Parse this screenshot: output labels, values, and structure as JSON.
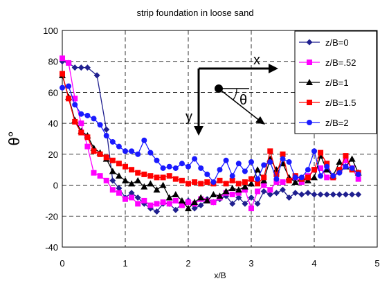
{
  "chart_data": {
    "type": "line",
    "title": "strip foundation in loose sand",
    "xlabel": "x/B",
    "ylabel": "θ°",
    "xlim": [
      0,
      5
    ],
    "ylim": [
      -40,
      100
    ],
    "xticks": [
      0,
      1,
      2,
      3,
      4,
      5
    ],
    "yticks": [
      -40,
      -20,
      0,
      20,
      40,
      60,
      80,
      100
    ],
    "grid": "dashed",
    "legend_placement": "top-right",
    "series": [
      {
        "name": "z/B=0",
        "color": "#1f1f8f",
        "marker": "diamond",
        "x": [
          0,
          0.1,
          0.2,
          0.3,
          0.4,
          0.55,
          0.7,
          0.8,
          0.9,
          1.0,
          1.1,
          1.2,
          1.3,
          1.4,
          1.5,
          1.6,
          1.7,
          1.8,
          1.9,
          2.0,
          2.1,
          2.2,
          2.3,
          2.4,
          2.5,
          2.6,
          2.7,
          2.8,
          2.9,
          3.0,
          3.1,
          3.2,
          3.3,
          3.4,
          3.5,
          3.6,
          3.7,
          3.8,
          3.9,
          4.0,
          4.1,
          4.2,
          4.3,
          4.4,
          4.5,
          4.6,
          4.7
        ],
        "y": [
          80,
          79,
          76,
          76,
          76,
          71,
          36,
          3,
          -2,
          -8,
          -5,
          -8,
          -12,
          -15,
          -17,
          -12,
          -12,
          -16,
          -12,
          -10,
          -15,
          -13,
          -9,
          -11,
          -9,
          -7,
          -12,
          -8,
          -12,
          -8,
          -12,
          -4,
          -6,
          -5,
          -3,
          -8,
          -5,
          -6,
          -5,
          -6,
          -6,
          -6,
          -6,
          -6,
          -6,
          -6,
          -6
        ]
      },
      {
        "name": "z/B=.52",
        "color": "#ff00ff",
        "marker": "square",
        "x": [
          0,
          0.1,
          0.2,
          0.3,
          0.4,
          0.5,
          0.6,
          0.7,
          0.8,
          0.9,
          1.0,
          1.1,
          1.2,
          1.3,
          1.4,
          1.5,
          1.6,
          1.7,
          1.8,
          1.9,
          2.0,
          2.1,
          2.2,
          2.3,
          2.4,
          2.5,
          2.6,
          2.7,
          2.8,
          2.9,
          3.0,
          3.1,
          3.2,
          3.3,
          3.4,
          3.5,
          3.6,
          3.7,
          3.8,
          3.9,
          4.0,
          4.1,
          4.2,
          4.3,
          4.4,
          4.5,
          4.6,
          4.7
        ],
        "y": [
          82,
          79,
          56,
          40,
          25,
          8,
          6,
          3,
          -3,
          -5,
          -9,
          -8,
          -12,
          -10,
          -13,
          -12,
          -11,
          -12,
          -10,
          -13,
          -11,
          -12,
          -9,
          -10,
          -11,
          -8,
          -5,
          -6,
          -5,
          -3,
          -15,
          -4,
          0,
          -3,
          2,
          2,
          3,
          5,
          2,
          6,
          10,
          11,
          5,
          5,
          10,
          16,
          11,
          4
        ]
      },
      {
        "name": "z/B=1",
        "color": "#000000",
        "marker": "triangle",
        "x": [
          0,
          0.1,
          0.2,
          0.3,
          0.4,
          0.5,
          0.6,
          0.7,
          0.8,
          0.9,
          1.0,
          1.1,
          1.2,
          1.3,
          1.4,
          1.5,
          1.6,
          1.7,
          1.8,
          1.9,
          2.0,
          2.1,
          2.2,
          2.3,
          2.4,
          2.5,
          2.6,
          2.7,
          2.8,
          2.9,
          3.0,
          3.1,
          3.2,
          3.3,
          3.4,
          3.5,
          3.6,
          3.7,
          3.8,
          3.9,
          4.0,
          4.1,
          4.2,
          4.3,
          4.4,
          4.5,
          4.6,
          4.7
        ],
        "y": [
          71,
          57,
          42,
          35,
          32,
          24,
          21,
          17,
          9,
          6,
          3,
          1,
          3,
          -1,
          1,
          -3,
          0,
          -8,
          -6,
          -10,
          -15,
          -11,
          -8,
          -10,
          -6,
          -7,
          -4,
          -2,
          -3,
          -1,
          1,
          10,
          3,
          17,
          10,
          14,
          5,
          2,
          4,
          3,
          5,
          19,
          10,
          6,
          15,
          12,
          17,
          8
        ]
      },
      {
        "name": "z/B=1.5",
        "color": "#ff0000",
        "marker": "square",
        "x": [
          0,
          0.1,
          0.2,
          0.3,
          0.4,
          0.5,
          0.6,
          0.7,
          0.8,
          0.9,
          1.0,
          1.1,
          1.2,
          1.3,
          1.4,
          1.5,
          1.6,
          1.7,
          1.8,
          1.9,
          2.0,
          2.1,
          2.2,
          2.3,
          2.4,
          2.5,
          2.6,
          2.7,
          2.8,
          2.9,
          3.0,
          3.1,
          3.2,
          3.3,
          3.4,
          3.5,
          3.6,
          3.7,
          3.8,
          3.9,
          4.0,
          4.1,
          4.2,
          4.3,
          4.4,
          4.5,
          4.6,
          4.7
        ],
        "y": [
          72,
          56,
          41,
          34,
          31,
          22,
          20,
          18,
          16,
          14,
          12,
          10,
          8,
          7,
          6,
          5,
          5,
          6,
          4,
          3,
          1,
          2,
          1,
          2,
          1,
          3,
          1,
          3,
          1,
          2,
          4,
          1,
          5,
          22,
          7,
          20,
          3,
          6,
          4,
          5,
          10,
          21,
          14,
          5,
          10,
          19,
          10,
          8
        ]
      },
      {
        "name": "z/B=2",
        "color": "#1a1aff",
        "marker": "circle",
        "x": [
          0,
          0.1,
          0.2,
          0.3,
          0.4,
          0.5,
          0.6,
          0.7,
          0.8,
          0.9,
          1.0,
          1.1,
          1.2,
          1.3,
          1.4,
          1.5,
          1.6,
          1.7,
          1.8,
          1.9,
          2.0,
          2.1,
          2.2,
          2.3,
          2.4,
          2.5,
          2.6,
          2.7,
          2.8,
          2.9,
          3.0,
          3.1,
          3.2,
          3.3,
          3.4,
          3.5,
          3.6,
          3.7,
          3.8,
          3.9,
          4.0,
          4.1,
          4.2,
          4.3,
          4.4,
          4.5,
          4.6,
          4.7
        ],
        "y": [
          63,
          64,
          52,
          46,
          45,
          43,
          39,
          32,
          28,
          25,
          22,
          22,
          20,
          29,
          21,
          16,
          11,
          12,
          11,
          14,
          12,
          17,
          11,
          7,
          2,
          10,
          16,
          6,
          14,
          9,
          15,
          4,
          13,
          15,
          4,
          17,
          15,
          5,
          5,
          10,
          22,
          6,
          12,
          6,
          8,
          12,
          11,
          7
        ]
      }
    ],
    "annotations": [
      {
        "text": "x"
      },
      {
        "text": "y"
      },
      {
        "text": "θ"
      }
    ]
  }
}
